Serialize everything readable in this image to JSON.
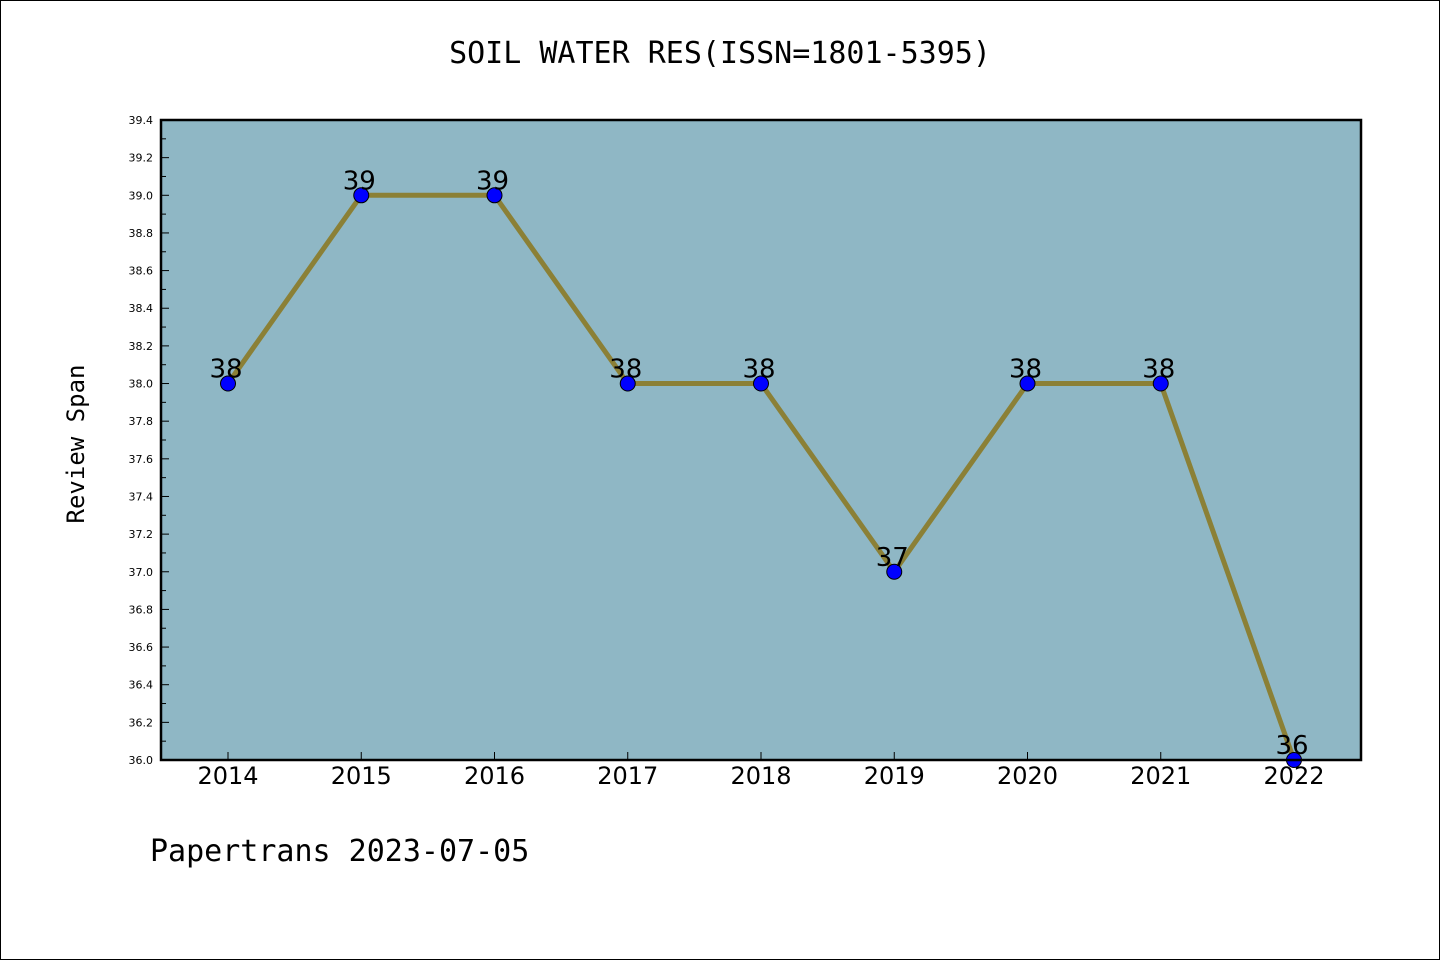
{
  "chart_data": {
    "type": "line",
    "title": "SOIL WATER RES(ISSN=1801-5395)",
    "xlabel": "",
    "ylabel": "Review Span",
    "categories": [
      "2014",
      "2015",
      "2016",
      "2017",
      "2018",
      "2019",
      "2020",
      "2021",
      "2022"
    ],
    "series": [
      {
        "values": [
          38,
          39,
          39,
          38,
          38,
          37,
          38,
          38,
          36
        ],
        "labels": [
          "38",
          "39",
          "39",
          "38",
          "38",
          "37",
          "38",
          "38",
          "36"
        ]
      }
    ],
    "ylim": [
      36.0,
      39.4
    ],
    "yticks": [
      "36.0",
      "36.2",
      "36.4",
      "36.6",
      "36.8",
      "37.0",
      "37.2",
      "37.4",
      "37.6",
      "37.8",
      "38.0",
      "38.2",
      "38.4",
      "38.6",
      "38.8",
      "39.0",
      "39.2",
      "39.4"
    ],
    "grid": false,
    "colors": {
      "plot_background": "#8fb7c5",
      "line": "#8b8036",
      "marker": "#0000ff"
    }
  },
  "footer": {
    "text": "Papertrans 2023-07-05"
  }
}
